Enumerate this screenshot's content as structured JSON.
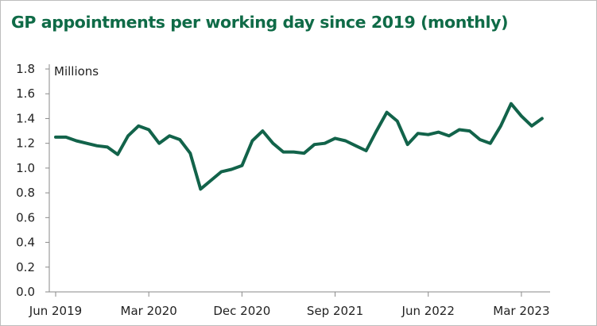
{
  "colors": {
    "title": "#0f6b47",
    "line": "#12634a",
    "axis": "#8a8a8a",
    "text": "#222222",
    "border": "#bdbdbd"
  },
  "chart_data": {
    "type": "line",
    "title": "GP appointments per working day since 2019 (monthly)",
    "ylabel": "Millions",
    "xlabel": "",
    "ylim": [
      0,
      1.8
    ],
    "y_ticks": [
      0.0,
      0.2,
      0.4,
      0.6,
      0.8,
      1.0,
      1.2,
      1.4,
      1.6,
      1.8
    ],
    "y_tick_labels": [
      "0.0",
      "0.2",
      "0.4",
      "0.6",
      "0.8",
      "1.0",
      "1.2",
      "1.4",
      "1.6",
      "1.8"
    ],
    "x_tick_labels": [
      "Jun 2019",
      "Mar 2020",
      "Dec 2020",
      "Sep 2021",
      "Jun 2022",
      "Mar 2023"
    ],
    "x_tick_months": [
      "2019-06",
      "2020-03",
      "2020-12",
      "2021-09",
      "2022-06",
      "2023-03"
    ],
    "grid": false,
    "legend": "none",
    "x": [
      "2019-06",
      "2019-07",
      "2019-08",
      "2019-09",
      "2019-10",
      "2019-11",
      "2019-12",
      "2020-01",
      "2020-02",
      "2020-03",
      "2020-04",
      "2020-05",
      "2020-06",
      "2020-07",
      "2020-08",
      "2020-09",
      "2020-10",
      "2020-11",
      "2020-12",
      "2021-01",
      "2021-02",
      "2021-03",
      "2021-04",
      "2021-05",
      "2021-06",
      "2021-07",
      "2021-08",
      "2021-09",
      "2021-10",
      "2021-11",
      "2021-12",
      "2022-01",
      "2022-02",
      "2022-03",
      "2022-04",
      "2022-05",
      "2022-06",
      "2022-07",
      "2022-08",
      "2022-09",
      "2022-10",
      "2022-11",
      "2022-12",
      "2023-01",
      "2023-02",
      "2023-03",
      "2023-04",
      "2023-05"
    ],
    "series": [
      {
        "values": [
          1.25,
          1.25,
          1.22,
          1.2,
          1.18,
          1.17,
          1.11,
          1.26,
          1.34,
          1.31,
          1.2,
          1.26,
          1.23,
          1.12,
          0.83,
          0.9,
          0.97,
          0.99,
          1.02,
          1.22,
          1.3,
          1.2,
          1.13,
          1.13,
          1.12,
          1.19,
          1.2,
          1.24,
          1.22,
          1.18,
          1.14,
          1.3,
          1.45,
          1.38,
          1.19,
          1.28,
          1.27,
          1.29,
          1.26,
          1.31,
          1.3,
          1.23,
          1.2,
          1.34,
          1.52,
          1.42,
          1.34,
          1.4
        ]
      }
    ]
  }
}
